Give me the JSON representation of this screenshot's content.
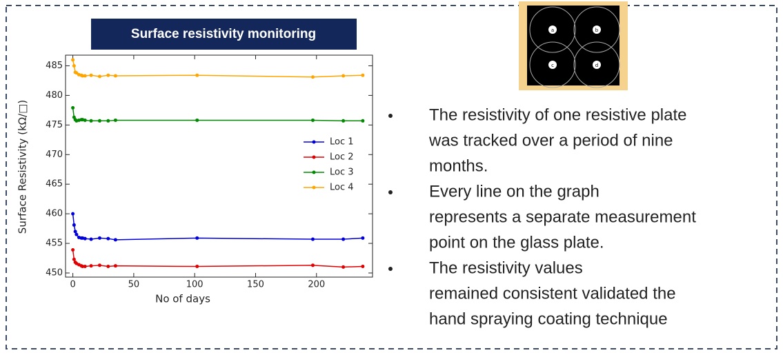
{
  "banner": {
    "title": "Surface resistivity monitoring"
  },
  "image": {
    "labels": [
      "a",
      "b",
      "c",
      "d"
    ]
  },
  "bullets": [
    [
      "The resistivity of one resistive plate",
      "was tracked over a period of nine",
      "months."
    ],
    [
      "Every line on the graph",
      "represents a separate measurement",
      "point on the glass plate."
    ],
    [
      "The resistivity values",
      "remained consistent validated the",
      "hand spraying coating technique"
    ]
  ],
  "chart_data": {
    "type": "line",
    "x_label": "No of days",
    "y_label": "Surface Resistivity (kΩ/□)",
    "x": [
      0,
      1,
      2,
      3,
      5,
      7,
      8,
      10,
      15,
      22,
      29,
      35,
      102,
      197,
      222,
      238
    ],
    "series": [
      {
        "name": "Loc 1",
        "color": "#0000dd",
        "values": [
          460,
          458.1,
          457,
          456.5,
          456,
          455.9,
          455.9,
          455.8,
          455.7,
          455.9,
          455.8,
          455.6,
          455.9,
          455.7,
          455.7,
          455.9
        ]
      },
      {
        "name": "Loc 2",
        "color": "#e00000",
        "values": [
          453.9,
          452.3,
          451.8,
          451.6,
          451.4,
          451.2,
          451.1,
          451.1,
          451.2,
          451.3,
          451.1,
          451.2,
          451.1,
          451.3,
          451,
          451.1
        ]
      },
      {
        "name": "Loc 3",
        "color": "#008800",
        "values": [
          477.9,
          476.3,
          475.9,
          475.7,
          475.8,
          475.9,
          475.9,
          475.8,
          475.7,
          475.7,
          475.7,
          475.8,
          475.8,
          475.8,
          475.7,
          475.7
        ]
      },
      {
        "name": "Loc 4",
        "color": "#ffa500",
        "values": [
          486,
          485,
          483.9,
          483.8,
          483.5,
          483.4,
          483.3,
          483.3,
          483.4,
          483.2,
          483.4,
          483.3,
          483.4,
          483.1,
          483.3,
          483.4
        ]
      }
    ],
    "xlim": [
      -6,
      246
    ],
    "ylim": [
      449.3,
      486.8
    ],
    "xticks": [
      0,
      50,
      100,
      150,
      200
    ],
    "yticks": [
      450,
      455,
      460,
      465,
      470,
      475,
      480,
      485
    ],
    "legend": "center right",
    "grid": false
  }
}
